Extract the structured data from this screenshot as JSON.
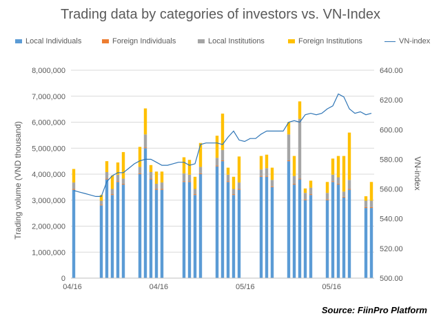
{
  "chart_data": {
    "type": "bar",
    "title": "Trading data by categories of investors vs. VN-Index",
    "ylabel": "Trading volume (VND thousand)",
    "y2label": "VN-index",
    "ylim": [
      0,
      8000000
    ],
    "y2lim": [
      500,
      640
    ],
    "yticks": [
      "0",
      "1,000,000",
      "2,000,000",
      "3,000,000",
      "4,000,000",
      "5,000,000",
      "6,000,000",
      "7,000,000",
      "8,000,000"
    ],
    "y2ticks": [
      "500.00",
      "520.00",
      "540.00",
      "560.00",
      "580.00",
      "600.00",
      "620.00",
      "640.00"
    ],
    "xticks": [
      "04/16",
      "04/16",
      "05/16",
      "05/16"
    ],
    "stacked": true,
    "grid": true,
    "legend_position": "top",
    "series": [
      {
        "name": "Local Individuals",
        "color": "#5b9bd5",
        "values": [
          3400000,
          0,
          0,
          0,
          0,
          2800000,
          3800000,
          3200000,
          3700000,
          3600000,
          0,
          0,
          4000000,
          5000000,
          3800000,
          3400000,
          3400000,
          0,
          0,
          0,
          3700000,
          3700000,
          3200000,
          4000000,
          0,
          0,
          4300000,
          4500000,
          3700000,
          3200000,
          3400000,
          0,
          0,
          0,
          3900000,
          3900000,
          3500000,
          0,
          0,
          4500000,
          3600000,
          3800000,
          3000000,
          3200000,
          0,
          0,
          3000000,
          3700000,
          3600000,
          3100000,
          3400000,
          0,
          0,
          2700000,
          2700000
        ]
      },
      {
        "name": "Foreign Individuals",
        "color": "#ed7d31",
        "values": [
          30000,
          0,
          0,
          0,
          0,
          30000,
          30000,
          30000,
          30000,
          30000,
          0,
          0,
          30000,
          30000,
          30000,
          30000,
          30000,
          0,
          0,
          0,
          30000,
          30000,
          30000,
          30000,
          0,
          0,
          30000,
          30000,
          30000,
          30000,
          30000,
          0,
          0,
          0,
          30000,
          30000,
          30000,
          0,
          0,
          30000,
          30000,
          30000,
          30000,
          30000,
          0,
          0,
          30000,
          30000,
          30000,
          30000,
          30000,
          0,
          0,
          30000,
          30000
        ]
      },
      {
        "name": "Local Institutions",
        "color": "#a5a5a5",
        "values": [
          250000,
          0,
          0,
          0,
          0,
          150000,
          250000,
          200000,
          250000,
          200000,
          0,
          0,
          250000,
          500000,
          250000,
          200000,
          250000,
          0,
          0,
          0,
          300000,
          250000,
          200000,
          250000,
          0,
          0,
          300000,
          400000,
          250000,
          200000,
          250000,
          0,
          0,
          0,
          250000,
          300000,
          250000,
          0,
          0,
          1000000,
          300000,
          2300000,
          250000,
          250000,
          0,
          0,
          250000,
          250000,
          250000,
          200000,
          350000,
          0,
          0,
          250000,
          250000
        ]
      },
      {
        "name": "Foreign Institutions",
        "color": "#ffc000",
        "values": [
          520000,
          0,
          0,
          0,
          0,
          220000,
          420000,
          520000,
          470000,
          1020000,
          0,
          0,
          770000,
          1000000,
          270000,
          470000,
          420000,
          0,
          0,
          0,
          620000,
          570000,
          470000,
          920000,
          0,
          0,
          850000,
          1400000,
          270000,
          470000,
          1000000,
          0,
          0,
          0,
          520000,
          520000,
          470000,
          0,
          0,
          470000,
          770000,
          670000,
          170000,
          270000,
          0,
          0,
          420000,
          620000,
          820000,
          1370000,
          1820000,
          0,
          0,
          170000,
          720000
        ]
      },
      {
        "name": "VN-index",
        "type": "line",
        "color": "#2e75b6",
        "values": [
          559,
          558,
          557,
          556,
          555,
          555,
          565,
          569,
          571,
          571,
          574,
          577,
          579,
          580,
          580,
          578,
          576,
          576,
          577,
          578,
          578,
          576,
          577,
          590,
          591,
          591,
          591,
          590,
          595,
          599,
          593,
          592,
          594,
          594,
          597,
          599,
          599,
          599,
          599,
          605,
          606,
          605,
          610,
          611,
          610,
          611,
          614,
          616,
          624,
          622,
          614,
          611,
          612,
          610,
          611
        ]
      }
    ]
  },
  "labels": {
    "legend": [
      "Local Individuals",
      "Foreign Individuals",
      "Local Institutions",
      "Foreign Institutions",
      "VN-index"
    ]
  },
  "source": "Source: FiinPro Platform"
}
